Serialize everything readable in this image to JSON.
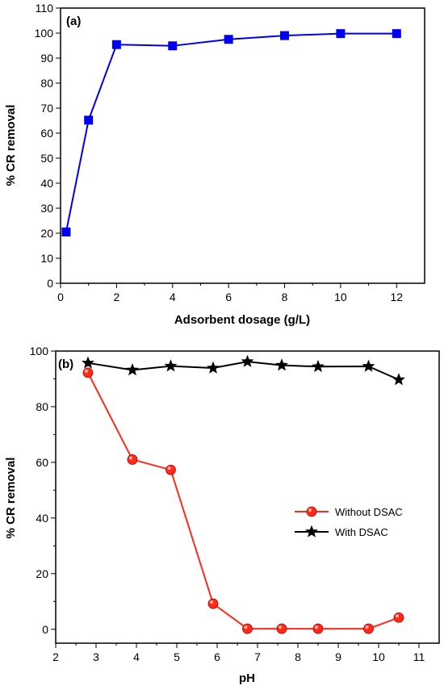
{
  "chart_data": [
    {
      "type": "line",
      "panel_label": "(a)",
      "xlabel": "Adsorbent dosage (g/L)",
      "ylabel": "% CR removal",
      "xlim": [
        0,
        13
      ],
      "ylim": [
        0,
        110
      ],
      "x_ticks": [
        0,
        2,
        4,
        6,
        8,
        10,
        12
      ],
      "y_ticks": [
        0,
        10,
        20,
        30,
        40,
        50,
        60,
        70,
        80,
        90,
        100,
        110
      ],
      "grid": false,
      "series": [
        {
          "color": "#0000ee",
          "marker": "square",
          "x": [
            0.2,
            1,
            2,
            4,
            6,
            8,
            10,
            12
          ],
          "y": [
            20.5,
            65.2,
            95.4,
            94.9,
            97.5,
            99.0,
            99.8,
            99.8
          ]
        }
      ]
    },
    {
      "type": "line",
      "panel_label": "(b)",
      "xlabel": "pH",
      "ylabel": "% CR removal",
      "xlim": [
        2,
        11.5
      ],
      "ylim": [
        -5,
        100
      ],
      "x_ticks": [
        2,
        3,
        4,
        5,
        6,
        7,
        8,
        9,
        10,
        11
      ],
      "y_ticks": [
        0,
        20,
        40,
        60,
        80,
        100
      ],
      "grid": false,
      "legend_position": "center-right",
      "series": [
        {
          "name": "Without DSAC",
          "color": "#ff2a1a",
          "marker": "circle",
          "x": [
            2.8,
            3.9,
            4.85,
            5.9,
            6.75,
            7.6,
            8.5,
            9.75,
            10.5
          ],
          "y": [
            92.2,
            61.0,
            57.3,
            9.2,
            0.2,
            0.2,
            0.2,
            0.2,
            4.2
          ]
        },
        {
          "name": "With DSAC",
          "color": "#000000",
          "marker": "star",
          "x": [
            2.8,
            3.9,
            4.85,
            5.9,
            6.75,
            7.6,
            8.5,
            9.75,
            10.5
          ],
          "y": [
            95.7,
            93.2,
            94.6,
            93.9,
            96.2,
            94.9,
            94.4,
            94.5,
            89.7
          ]
        }
      ]
    }
  ]
}
